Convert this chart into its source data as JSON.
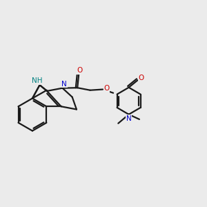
{
  "bg_color": "#ebebeb",
  "bond_color": "#1a1a1a",
  "N_color": "#0000cc",
  "O_color": "#cc0000",
  "NH_color": "#008080",
  "line_width": 1.6,
  "font_size": 7.5,
  "fig_size": [
    3.0,
    3.0
  ],
  "dpi": 100,
  "xlim": [
    -0.5,
    10.5
  ],
  "ylim": [
    -3.0,
    4.5
  ]
}
